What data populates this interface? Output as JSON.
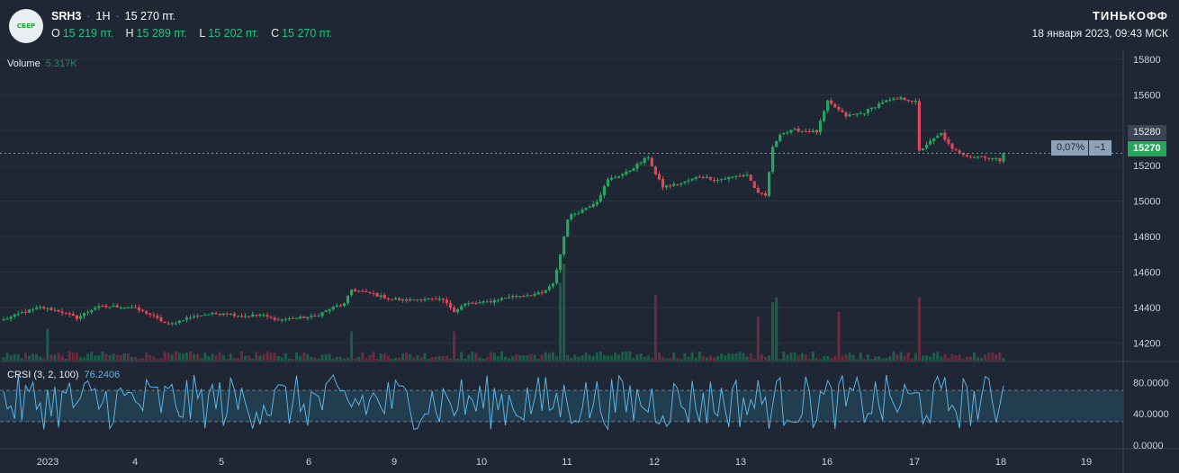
{
  "header": {
    "logo_text": "СБЕР",
    "ticker": "SRH3",
    "interval": "1H",
    "last": "15 270 пт.",
    "ohlc": [
      {
        "k": "O",
        "v": "15 219 пт."
      },
      {
        "k": "H",
        "v": "15 289 пт."
      },
      {
        "k": "L",
        "v": "15 202 пт."
      },
      {
        "k": "C",
        "v": "15 270 пт."
      }
    ],
    "brand": "ТИНЬКОФФ",
    "datetime": "18 января 2023, 09:43 МСК"
  },
  "volume": {
    "label": "Volume",
    "value": "5.317K"
  },
  "crsi": {
    "label": "CRSI (3, 2, 100)",
    "value": "76.2406"
  },
  "price_labels": {
    "p1": "15280",
    "p2": "15270",
    "change": "0,07%",
    "qty": "−1"
  },
  "colors": {
    "up": "#26a65b",
    "down": "#e0455a",
    "crsi_line": "#5ab4e8",
    "bg": "#1e2733"
  },
  "chart_data": {
    "type": "candlestick",
    "ylim": [
      14100,
      15850
    ],
    "y_ticks": [
      "15800",
      "15600",
      "15400",
      "15200",
      "15000",
      "14800",
      "14600",
      "14400",
      "14200"
    ],
    "x_ticks": [
      "2023",
      "4",
      "5",
      "6",
      "9",
      "10",
      "11",
      "12",
      "13",
      "16",
      "17",
      "18",
      "19"
    ],
    "crsi_ticks": [
      "80.0000",
      "40.0000",
      "0.0000"
    ],
    "crsi_band": [
      70,
      30
    ],
    "anchors": [
      [
        0,
        14330
      ],
      [
        5,
        14370
      ],
      [
        10,
        14400
      ],
      [
        15,
        14380
      ],
      [
        20,
        14340
      ],
      [
        25,
        14400
      ],
      [
        30,
        14405
      ],
      [
        35,
        14400
      ],
      [
        40,
        14360
      ],
      [
        45,
        14300
      ],
      [
        50,
        14340
      ],
      [
        55,
        14360
      ],
      [
        60,
        14370
      ],
      [
        65,
        14350
      ],
      [
        70,
        14360
      ],
      [
        75,
        14330
      ],
      [
        80,
        14340
      ],
      [
        85,
        14350
      ],
      [
        90,
        14400
      ],
      [
        93,
        14420
      ],
      [
        95,
        14500
      ],
      [
        100,
        14480
      ],
      [
        105,
        14450
      ],
      [
        110,
        14440
      ],
      [
        115,
        14450
      ],
      [
        120,
        14440
      ],
      [
        123,
        14380
      ],
      [
        126,
        14420
      ],
      [
        132,
        14430
      ],
      [
        138,
        14460
      ],
      [
        143,
        14470
      ],
      [
        147,
        14480
      ],
      [
        150,
        14530
      ],
      [
        152,
        14700
      ],
      [
        154,
        14900
      ],
      [
        155,
        14920
      ],
      [
        158,
        14950
      ],
      [
        162,
        15000
      ],
      [
        165,
        15120
      ],
      [
        170,
        15160
      ],
      [
        174,
        15220
      ],
      [
        176,
        15250
      ],
      [
        178,
        15150
      ],
      [
        180,
        15080
      ],
      [
        185,
        15100
      ],
      [
        190,
        15140
      ],
      [
        195,
        15120
      ],
      [
        200,
        15140
      ],
      [
        203,
        15150
      ],
      [
        206,
        15040
      ],
      [
        208,
        15030
      ],
      [
        210,
        15300
      ],
      [
        212,
        15380
      ],
      [
        216,
        15400
      ],
      [
        222,
        15390
      ],
      [
        225,
        15560
      ],
      [
        230,
        15480
      ],
      [
        235,
        15500
      ],
      [
        240,
        15560
      ],
      [
        245,
        15580
      ],
      [
        249,
        15560
      ],
      [
        250,
        15280
      ],
      [
        252,
        15320
      ],
      [
        256,
        15380
      ],
      [
        259,
        15290
      ],
      [
        264,
        15250
      ],
      [
        268,
        15250
      ],
      [
        272,
        15230
      ],
      [
        273,
        15270
      ]
    ],
    "volume_spikes": [
      [
        12,
        1300
      ],
      [
        95,
        1200
      ],
      [
        123,
        1200
      ],
      [
        152,
        3200
      ],
      [
        153,
        4000
      ],
      [
        178,
        2700
      ],
      [
        206,
        1800
      ],
      [
        210,
        2400
      ],
      [
        211,
        2600
      ],
      [
        228,
        2000
      ],
      [
        250,
        2600
      ]
    ],
    "crsi_last": 76.2406
  }
}
